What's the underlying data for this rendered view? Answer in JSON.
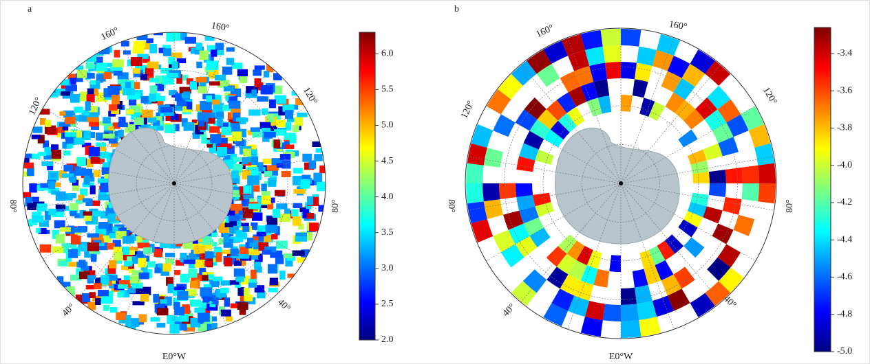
{
  "panels": [
    {
      "label": "a",
      "lon_labels": [
        "160°",
        "160°",
        "120°",
        "120°",
        "80°",
        "80°",
        "40°",
        "40°",
        "E0°W"
      ],
      "colorbar": {
        "lim": [
          2.0,
          6.3
        ],
        "ticks": [
          {
            "value": 2,
            "label": "2.0"
          },
          2.5,
          {
            "value": 3,
            "label": "3.0"
          },
          3.5,
          {
            "value": 4,
            "label": "4.0"
          },
          4.5,
          {
            "value": 5,
            "label": "5.0"
          },
          5.5,
          {
            "value": 6,
            "label": "6.0"
          }
        ]
      }
    },
    {
      "label": "b",
      "lon_labels": [
        "160°",
        "160°",
        "120°",
        "120°",
        "80°",
        "80°",
        "40°",
        "40°",
        "E0°W"
      ],
      "colorbar": {
        "lim": [
          -5.0,
          -3.26
        ],
        "ticks": [
          {
            "value": -5,
            "label": "-5.0"
          },
          -4.8,
          -4.6,
          -4.4,
          -4.2,
          {
            "value": -4,
            "label": "-4.0"
          },
          -3.8,
          -3.6,
          -3.4
        ]
      }
    }
  ]
}
